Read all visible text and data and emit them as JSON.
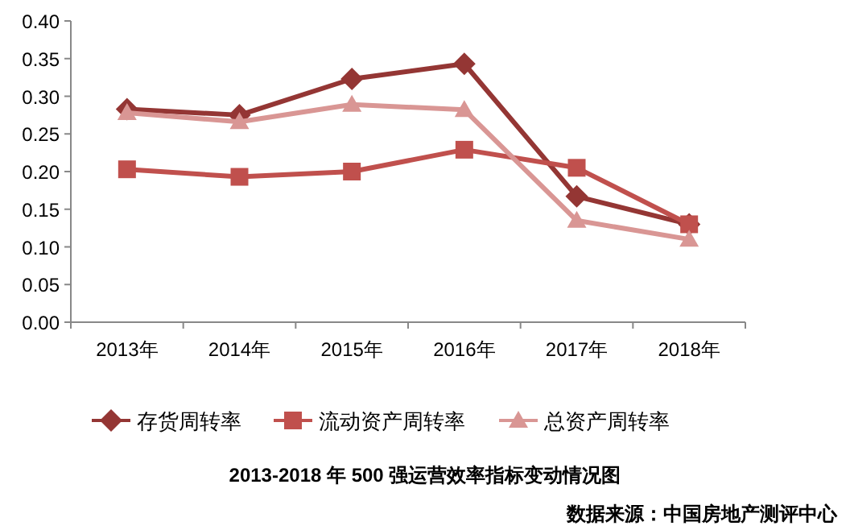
{
  "chart_data": {
    "type": "line",
    "title": "2013-2018 年 500 强运营效率指标变动情况图",
    "categories": [
      "2013年",
      "2014年",
      "2015年",
      "2016年",
      "2017年",
      "2018年"
    ],
    "series": [
      {
        "name": "存货周转率",
        "color": "#943634",
        "marker": "diamond",
        "values": [
          0.283,
          0.275,
          0.323,
          0.343,
          0.167,
          0.13
        ]
      },
      {
        "name": "流动资产周转率",
        "color": "#c0504d",
        "marker": "square",
        "values": [
          0.203,
          0.193,
          0.2,
          0.229,
          0.205,
          0.13
        ]
      },
      {
        "name": "总资产周转率",
        "color": "#d99694",
        "marker": "triangle",
        "values": [
          0.278,
          0.266,
          0.289,
          0.282,
          0.135,
          0.11
        ]
      }
    ],
    "ylim": [
      0,
      0.4
    ],
    "yticks": [
      {
        "value": 0,
        "label": "0.00"
      },
      {
        "value": 0.05,
        "label": "0.05"
      },
      {
        "value": 0.1,
        "label": "0.10"
      },
      {
        "value": 0.15,
        "label": "0.15"
      },
      {
        "value": 0.2,
        "label": "0.20"
      },
      {
        "value": 0.25,
        "label": "0.25"
      },
      {
        "value": 0.3,
        "label": "0.30"
      },
      {
        "value": 0.35,
        "label": "0.35"
      },
      {
        "value": 0.4,
        "label": "0.40"
      }
    ],
    "grid": false,
    "legend": "bottom",
    "annotations": [
      "数据来源：中国房地产测评中心"
    ]
  }
}
